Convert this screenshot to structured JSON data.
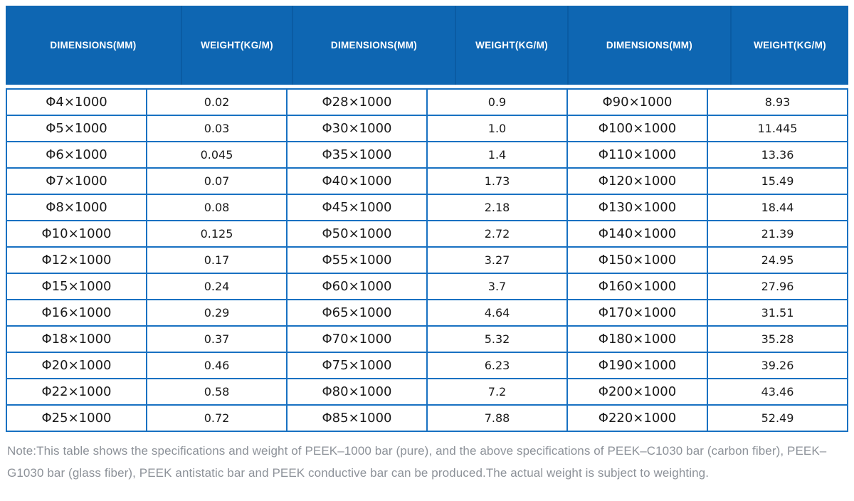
{
  "colors": {
    "header_bg": "#0e66b2",
    "header_divider": "#0a5ba3",
    "grid_border": "#1871c2",
    "header_text": "#ffffff",
    "cell_text": "#1a1a1a",
    "note_text": "#8d9299"
  },
  "table": {
    "columns": [
      {
        "label": "DIMENSIONS(MM)",
        "kind": "dimensions"
      },
      {
        "label": "WEIGHT(KG/M)",
        "kind": "weight"
      },
      {
        "label": "DIMENSIONS(MM)",
        "kind": "dimensions"
      },
      {
        "label": "WEIGHT(KG/M)",
        "kind": "weight"
      },
      {
        "label": "DIMENSIONS(MM)",
        "kind": "dimensions"
      },
      {
        "label": "WEIGHT(KG/M)",
        "kind": "weight"
      }
    ],
    "rows": [
      [
        "Φ4×1000",
        "0.02",
        "Φ28×1000",
        "0.9",
        "Φ90×1000",
        "8.93"
      ],
      [
        "Φ5×1000",
        "0.03",
        "Φ30×1000",
        "1.0",
        "Φ100×1000",
        "11.445"
      ],
      [
        "Φ6×1000",
        "0.045",
        "Φ35×1000",
        "1.4",
        "Φ110×1000",
        "13.36"
      ],
      [
        "Φ7×1000",
        "0.07",
        "Φ40×1000",
        "1.73",
        "Φ120×1000",
        "15.49"
      ],
      [
        "Φ8×1000",
        "0.08",
        "Φ45×1000",
        "2.18",
        "Φ130×1000",
        "18.44"
      ],
      [
        "Φ10×1000",
        "0.125",
        "Φ50×1000",
        "2.72",
        "Φ140×1000",
        "21.39"
      ],
      [
        "Φ12×1000",
        "0.17",
        "Φ55×1000",
        "3.27",
        "Φ150×1000",
        "24.95"
      ],
      [
        "Φ15×1000",
        "0.24",
        "Φ60×1000",
        "3.7",
        "Φ160×1000",
        "27.96"
      ],
      [
        "Φ16×1000",
        "0.29",
        "Φ65×1000",
        "4.64",
        "Φ170×1000",
        "31.51"
      ],
      [
        "Φ18×1000",
        "0.37",
        "Φ70×1000",
        "5.32",
        "Φ180×1000",
        "35.28"
      ],
      [
        "Φ20×1000",
        "0.46",
        "Φ75×1000",
        "6.23",
        "Φ190×1000",
        "39.26"
      ],
      [
        "Φ22×1000",
        "0.58",
        "Φ80×1000",
        "7.2",
        "Φ200×1000",
        "43.46"
      ],
      [
        "Φ25×1000",
        "0.72",
        "Φ85×1000",
        "7.88",
        "Φ220×1000",
        "52.49"
      ]
    ]
  },
  "note": "Note:This table shows the specifications and weight of PEEK–1000 bar (pure), and the above specifications of PEEK–C1030 bar (carbon fiber), PEEK–G1030 bar (glass fiber), PEEK antistatic bar and PEEK conductive bar can be produced.The actual weight is subject to weighting."
}
